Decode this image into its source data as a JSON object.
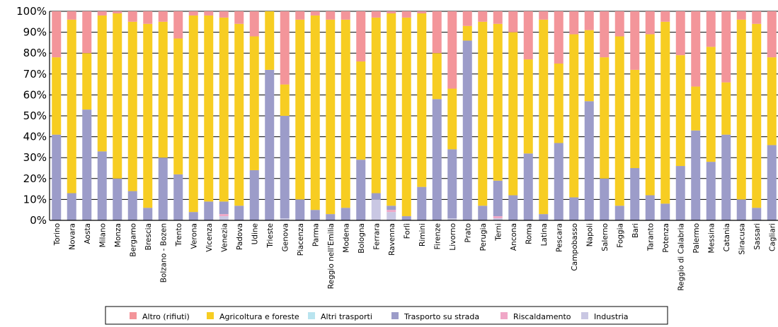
{
  "chart_data": {
    "type": "bar",
    "stacked": true,
    "normalized_percent": true,
    "categories": [
      "Torino",
      "Novara",
      "Aosta",
      "Milano",
      "Monza",
      "Bergamo",
      "Brescia",
      "Bolzano - Bozen",
      "Trento",
      "Verona",
      "Vicenza",
      "Venezia",
      "Padova",
      "Udine",
      "Trieste",
      "Genova",
      "Piacenza",
      "Parma",
      "Reggio nell'Emilia",
      "Modena",
      "Bologna",
      "Ferrara",
      "Ravenna",
      "Forlì",
      "Rimini",
      "Firenze",
      "Livorno",
      "Prato",
      "Perugia",
      "Terni",
      "Ancona",
      "Roma",
      "Latina",
      "Pescara",
      "Campobasso",
      "Napoli",
      "Salerno",
      "Foggia",
      "Bari",
      "Taranto",
      "Potenza",
      "Reggio di Calabria",
      "Palermo",
      "Messina",
      "Catania",
      "Siracusa",
      "Sassari",
      "Cagliari"
    ],
    "series": [
      {
        "name": "Industria",
        "color": "#c9c7e3",
        "values": [
          0,
          0,
          0,
          0,
          0,
          0,
          0,
          0,
          0,
          0,
          0,
          2,
          0,
          0,
          0,
          1,
          0,
          0,
          0,
          0,
          0,
          10,
          4,
          0,
          0,
          0,
          1,
          0,
          0,
          1,
          0,
          0,
          0,
          0,
          0,
          0,
          0,
          0,
          0,
          0,
          0,
          0,
          0,
          0,
          0,
          0,
          0,
          0
        ]
      },
      {
        "name": "Riscaldamento",
        "color": "#f0a7c7",
        "values": [
          0,
          0,
          0,
          0,
          0,
          0,
          0,
          0,
          0,
          0,
          0,
          1,
          0,
          0,
          0,
          0,
          0,
          0,
          0,
          0,
          0,
          0,
          1,
          0,
          0,
          0,
          0,
          0,
          0,
          1,
          0,
          0,
          0,
          0,
          0,
          0,
          0,
          0,
          0,
          0,
          0,
          0,
          0,
          0,
          0,
          0,
          0,
          0
        ]
      },
      {
        "name": "Trasporto su strada",
        "color": "#9c9cc9",
        "values": [
          41,
          13,
          53,
          33,
          20,
          14,
          6,
          30,
          22,
          4,
          9,
          6,
          7,
          24,
          72,
          49,
          10,
          5,
          3,
          6,
          29,
          3,
          2,
          2,
          16,
          58,
          33,
          86,
          7,
          17,
          12,
          32,
          3,
          37,
          11,
          57,
          20,
          7,
          25,
          12,
          8,
          26,
          43,
          28,
          41,
          10,
          6,
          36
        ]
      },
      {
        "name": "Altri trasporti",
        "color": "#b9e4ef",
        "values": [
          0,
          0,
          0,
          0,
          0,
          0,
          0,
          0,
          0,
          0,
          0,
          0,
          0,
          0,
          0,
          0,
          0,
          0,
          0,
          0,
          0,
          0,
          0,
          0,
          0,
          0,
          0,
          0,
          0,
          0,
          0,
          0,
          0,
          0,
          0,
          0,
          0,
          0,
          0,
          0,
          0,
          0,
          0,
          0,
          0,
          0,
          0,
          0
        ]
      },
      {
        "name": "Agricoltura e foreste",
        "color": "#f7cd22",
        "values": [
          37,
          83,
          27,
          65,
          79,
          81,
          88,
          65,
          65,
          94,
          89,
          88,
          87,
          64,
          28,
          15,
          86,
          93,
          93,
          90,
          47,
          84,
          92,
          95,
          83,
          22,
          29,
          7,
          88,
          75,
          78,
          45,
          93,
          38,
          78,
          34,
          58,
          81,
          47,
          77,
          87,
          53,
          21,
          55,
          25,
          86,
          88,
          42
        ]
      },
      {
        "name": "Altro (rifiuti)",
        "color": "#f3959a",
        "values": [
          22,
          4,
          20,
          2,
          1,
          5,
          6,
          5,
          13,
          2,
          2,
          3,
          6,
          12,
          0,
          35,
          4,
          2,
          4,
          4,
          24,
          3,
          1,
          3,
          1,
          20,
          37,
          7,
          5,
          6,
          10,
          23,
          4,
          25,
          11,
          9,
          22,
          12,
          28,
          11,
          5,
          21,
          36,
          17,
          34,
          4,
          6,
          22
        ]
      }
    ],
    "ylim": [
      0,
      100
    ],
    "yticks": [
      "0%",
      "10%",
      "20%",
      "30%",
      "40%",
      "50%",
      "60%",
      "70%",
      "80%",
      "90%",
      "100%"
    ],
    "grid": true,
    "legend_position": "bottom",
    "legend_order": [
      "Altro (rifiuti)",
      "Agricoltura e foreste",
      "Altri trasporti",
      "Trasporto su strada",
      "Riscaldamento",
      "Industria"
    ]
  }
}
